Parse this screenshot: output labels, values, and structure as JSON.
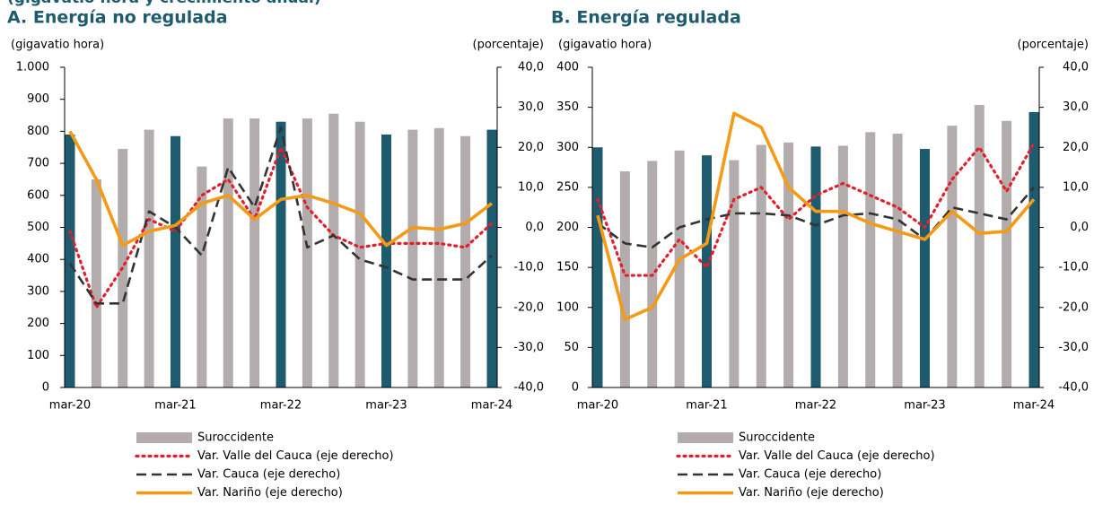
{
  "header": "(gigavatio hora y crecimiento anual)",
  "chart_data": [
    {
      "type": "combo",
      "title": "A. Energía no regulada",
      "y_label": "(gigavatio hora)",
      "y2_label": "(porcentaje)",
      "categories": [
        "mar-20",
        null,
        null,
        null,
        "mar-21",
        null,
        null,
        null,
        "mar-22",
        null,
        null,
        null,
        "mar-23",
        null,
        null,
        null,
        "mar-24"
      ],
      "series": [
        {
          "name": "Suroccidente",
          "type": "bar",
          "colors": [
            "#1f5b6e",
            "#b2adac",
            "#b2adac",
            "#b2adac",
            "#1f5b6e",
            "#b2adac",
            "#b2adac",
            "#b2adac",
            "#1f5b6e",
            "#b2adac",
            "#b2adac",
            "#b2adac",
            "#1f5b6e",
            "#b2adac",
            "#b2adac",
            "#b2adac",
            "#1f5b6e"
          ],
          "values": [
            790,
            650,
            745,
            805,
            785,
            690,
            840,
            840,
            830,
            840,
            855,
            830,
            790,
            805,
            810,
            785,
            805
          ]
        },
        {
          "name": "Var. Valle del Cauca (eje derecho)",
          "type": "line",
          "style": "dotted",
          "color": "#e0202a",
          "axis": "y2",
          "values": [
            -1,
            -20,
            -10,
            2,
            -1,
            8,
            12,
            2,
            20,
            5,
            -2,
            -5,
            -4,
            -4,
            -4,
            -5,
            1
          ]
        },
        {
          "name": "Var. Cauca (eje derecho)",
          "type": "line",
          "style": "dashed",
          "color": "#333333",
          "axis": "y2",
          "values": [
            -9,
            -19,
            -19,
            4,
            0,
            -7,
            15,
            5,
            25,
            -5,
            -2,
            -8,
            -10,
            -13,
            -13,
            -13,
            -7
          ]
        },
        {
          "name": "Var. Nariño (eje derecho)",
          "type": "line",
          "style": "solid",
          "color": "#f39a16",
          "axis": "y2",
          "values": [
            24,
            12,
            -4.5,
            -1,
            0.5,
            6,
            8,
            2,
            7,
            8,
            6,
            3.5,
            -4.5,
            0,
            -0.5,
            1,
            6
          ]
        }
      ],
      "ylim": [
        0,
        1000
      ],
      "yticks": [
        0,
        100,
        200,
        300,
        400,
        500,
        600,
        700,
        800,
        900,
        {
          "value": 1000,
          "label": "1.000"
        }
      ],
      "y2lim": [
        -40,
        40
      ],
      "y2ticks": [
        {
          "value": -40,
          "label": "-40,0"
        },
        {
          "value": -30,
          "label": "-30,0"
        },
        {
          "value": -20,
          "label": "-20,0"
        },
        {
          "value": -10,
          "label": "-10,0"
        },
        {
          "value": 0,
          "label": "0,0"
        },
        {
          "value": 10,
          "label": "10,0"
        },
        {
          "value": 20,
          "label": "20,0"
        },
        {
          "value": 30,
          "label": "30,0"
        },
        {
          "value": 40,
          "label": "40,0"
        }
      ]
    },
    {
      "type": "combo",
      "title": "B. Energía regulada",
      "y_label": "(gigavatio hora)",
      "y2_label": "(porcentaje)",
      "categories": [
        "mar-20",
        null,
        null,
        null,
        "mar-21",
        null,
        null,
        null,
        "mar-22",
        null,
        null,
        null,
        "mar-23",
        null,
        null,
        null,
        "mar-24"
      ],
      "series": [
        {
          "name": "Suroccidente",
          "type": "bar",
          "colors": [
            "#1f5b6e",
            "#b2adac",
            "#b2adac",
            "#b2adac",
            "#1f5b6e",
            "#b2adac",
            "#b2adac",
            "#b2adac",
            "#1f5b6e",
            "#b2adac",
            "#b2adac",
            "#b2adac",
            "#1f5b6e",
            "#b2adac",
            "#b2adac",
            "#b2adac",
            "#1f5b6e"
          ],
          "values": [
            300,
            270,
            283,
            296,
            290,
            284,
            303,
            306,
            301,
            302,
            319,
            317,
            298,
            327,
            353,
            333,
            344
          ]
        },
        {
          "name": "Var. Valle del Cauca (eje derecho)",
          "type": "line",
          "style": "dotted",
          "color": "#e0202a",
          "axis": "y2",
          "values": [
            7,
            -12,
            -12,
            -3,
            -10,
            7,
            10,
            2,
            8,
            11,
            8,
            5,
            0,
            12,
            20,
            9,
            21
          ]
        },
        {
          "name": "Var. Cauca (eje derecho)",
          "type": "line",
          "style": "dashed",
          "color": "#333333",
          "axis": "y2",
          "values": [
            1,
            -4,
            -5,
            0,
            2,
            3.5,
            3.5,
            3,
            0.5,
            3,
            3.5,
            2,
            -3,
            5,
            3.5,
            2,
            10
          ]
        },
        {
          "name": "Var. Nariño (eje derecho)",
          "type": "line",
          "style": "solid",
          "color": "#f39a16",
          "axis": "y2",
          "values": [
            3,
            -23,
            -20,
            -8,
            -4,
            28.5,
            25,
            10,
            4,
            4,
            1,
            -1,
            -3,
            4,
            -1.5,
            -1,
            7
          ]
        }
      ],
      "ylim": [
        0,
        400
      ],
      "yticks": [
        0,
        50,
        100,
        150,
        200,
        250,
        300,
        350,
        400
      ],
      "y2lim": [
        -40,
        40
      ],
      "y2ticks": [
        {
          "value": -40,
          "label": "-40,0"
        },
        {
          "value": -30,
          "label": "-30,0"
        },
        {
          "value": -20,
          "label": "-20,0"
        },
        {
          "value": -10,
          "label": "-10,0"
        },
        {
          "value": 0,
          "label": "0,0"
        },
        {
          "value": 10,
          "label": "10,0"
        },
        {
          "value": 20,
          "label": "20,0"
        },
        {
          "value": 30,
          "label": "30,0"
        },
        {
          "value": 40,
          "label": "40,0"
        }
      ]
    }
  ]
}
